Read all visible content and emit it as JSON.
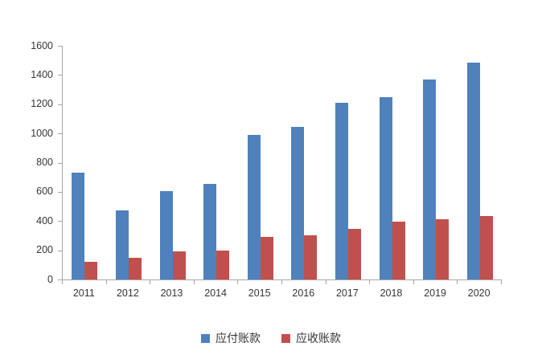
{
  "chart_data": {
    "type": "bar",
    "title": "",
    "xlabel": "",
    "ylabel": "",
    "categories": [
      "2011",
      "2012",
      "2013",
      "2014",
      "2015",
      "2016",
      "2017",
      "2018",
      "2019",
      "2020"
    ],
    "series": [
      {
        "name": "应付账款",
        "color": "#4f81bd",
        "values": [
          730,
          475,
          605,
          655,
          990,
          1045,
          1210,
          1250,
          1370,
          1485
        ]
      },
      {
        "name": "应收账款",
        "color": "#c0504d",
        "values": [
          120,
          150,
          190,
          200,
          290,
          300,
          345,
          395,
          410,
          435
        ]
      }
    ],
    "ylim": [
      0,
      1600
    ],
    "yticks": [
      0,
      200,
      400,
      600,
      800,
      1000,
      1200,
      1400,
      1600
    ],
    "grid": false,
    "legend_position": "bottom-center",
    "colors": {
      "axis": "#a6a6a6",
      "text": "#353535",
      "background": "#ffffff"
    }
  }
}
